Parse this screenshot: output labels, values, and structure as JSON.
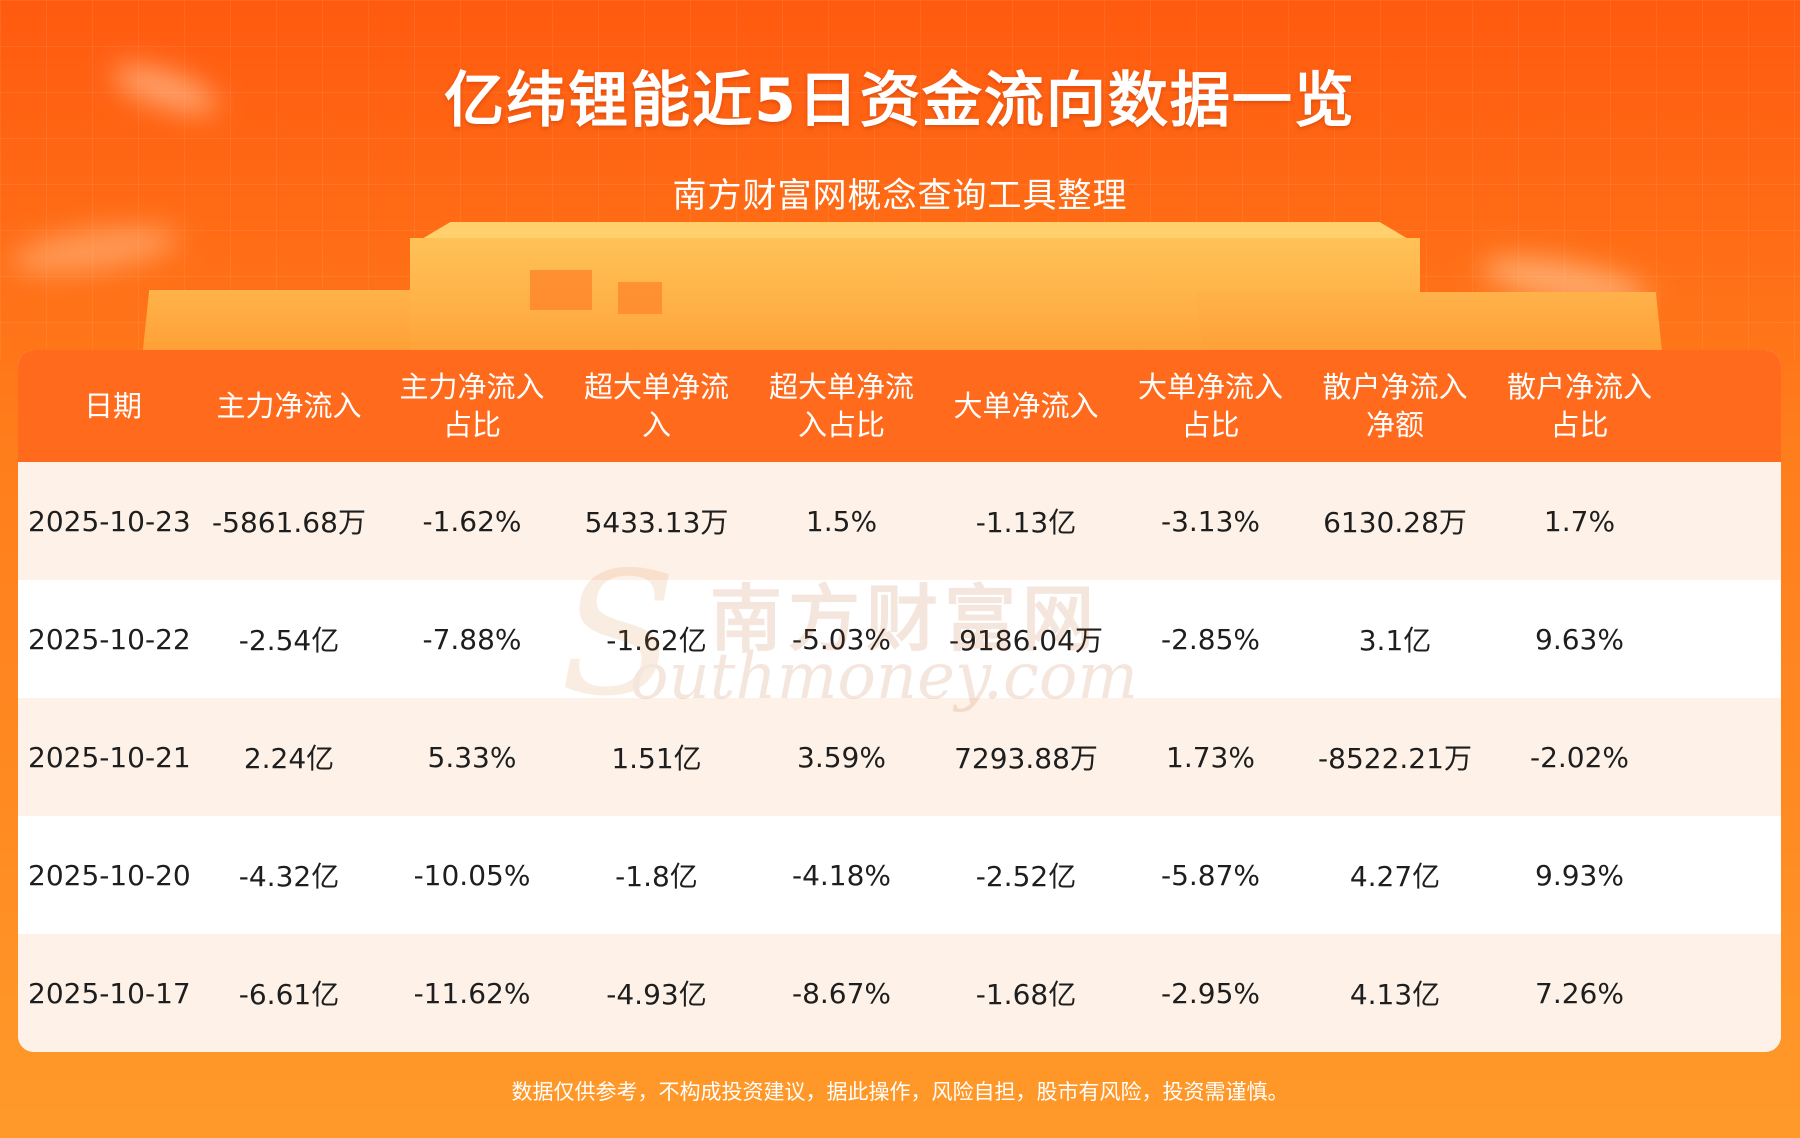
{
  "title": "亿纬锂能近5日资金流向数据一览",
  "subtitle": "南方财富网概念查询工具整理",
  "table": {
    "headers": [
      [
        "日期"
      ],
      [
        "主力净流入"
      ],
      [
        "主力净流入",
        "占比"
      ],
      [
        "超大单净流",
        "入"
      ],
      [
        "超大单净流",
        "入占比"
      ],
      [
        "大单净流入"
      ],
      [
        "大单净流入",
        "占比"
      ],
      [
        "散户净流入",
        "净额"
      ],
      [
        "散户净流入",
        "占比"
      ]
    ],
    "rows": [
      [
        "2025-10-23",
        "-5861.68万",
        "-1.62%",
        "5433.13万",
        "1.5%",
        "-1.13亿",
        "-3.13%",
        "6130.28万",
        "1.7%"
      ],
      [
        "2025-10-22",
        "-2.54亿",
        "-7.88%",
        "-1.62亿",
        "-5.03%",
        "-9186.04万",
        "-2.85%",
        "3.1亿",
        "9.63%"
      ],
      [
        "2025-10-21",
        "2.24亿",
        "5.33%",
        "1.51亿",
        "3.59%",
        "7293.88万",
        "1.73%",
        "-8522.21万",
        "-2.02%"
      ],
      [
        "2025-10-20",
        "-4.32亿",
        "-10.05%",
        "-1.8亿",
        "-4.18%",
        "-2.52亿",
        "-5.87%",
        "4.27亿",
        "9.93%"
      ],
      [
        "2025-10-17",
        "-6.61亿",
        "-11.62%",
        "-4.93亿",
        "-8.67%",
        "-1.68亿",
        "-2.95%",
        "4.13亿",
        "7.26%"
      ]
    ]
  },
  "watermark": {
    "cn": "南方财富网",
    "en": "outhmoney.com",
    "s": "S"
  },
  "footer": "数据仅供参考，不构成投资建议，据此操作，风险自担，股市有风险，投资需谨慎。",
  "colors": {
    "header_bg": "#ff6a1c",
    "row_alt": "#fdf1e8",
    "page_bg": "#ff7e1c"
  }
}
